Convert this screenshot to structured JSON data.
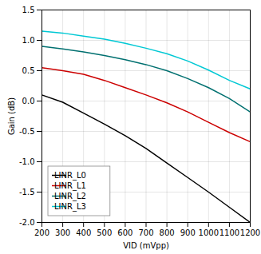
{
  "chart_data": {
    "type": "line",
    "xlabel": "VID (mVpp)",
    "ylabel": "Gain (dB)",
    "x": [
      200,
      300,
      400,
      500,
      600,
      700,
      800,
      900,
      1000,
      1100,
      1200
    ],
    "xlim": [
      200,
      1200
    ],
    "ylim": [
      -2.0,
      1.5
    ],
    "xticks": [
      200,
      300,
      400,
      500,
      600,
      700,
      800,
      900,
      1000,
      1100,
      1200
    ],
    "yticks": [
      {
        "value": -2.0,
        "label": "-2.0"
      },
      -1.5,
      {
        "value": -1.0,
        "label": "-1.0"
      },
      -0.5,
      {
        "value": 0.0,
        "label": "0.0"
      },
      0.5,
      {
        "value": 1.0,
        "label": "1.0"
      },
      1.5
    ],
    "series": [
      {
        "name": "LINR_L0",
        "color": "#000000",
        "values": [
          0.1,
          -0.02,
          -0.2,
          -0.38,
          -0.57,
          -0.78,
          -1.02,
          -1.26,
          -1.5,
          -1.75,
          -2.0
        ]
      },
      {
        "name": "LINR_L1",
        "color": "#cc0000",
        "values": [
          0.55,
          0.5,
          0.44,
          0.34,
          0.22,
          0.1,
          -0.03,
          -0.18,
          -0.35,
          -0.52,
          -0.67
        ]
      },
      {
        "name": "LINR_L2",
        "color": "#007070",
        "values": [
          0.9,
          0.86,
          0.81,
          0.75,
          0.68,
          0.6,
          0.5,
          0.37,
          0.22,
          0.04,
          -0.18
        ]
      },
      {
        "name": "LINR_L3",
        "color": "#00c8d4",
        "values": [
          1.15,
          1.12,
          1.07,
          1.02,
          0.95,
          0.87,
          0.78,
          0.66,
          0.51,
          0.34,
          0.2
        ]
      }
    ],
    "grid": true,
    "legend": "lower left"
  }
}
